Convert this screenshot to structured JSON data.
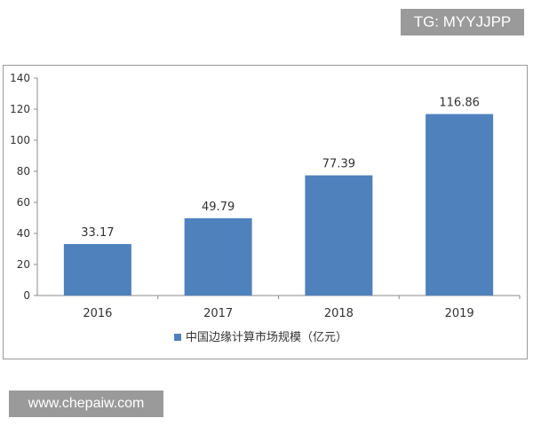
{
  "badge": {
    "text": "TG: MYYJJPP"
  },
  "watermark": {
    "text": "www.chepaiw.com"
  },
  "chart_data": {
    "type": "bar",
    "title": "",
    "xlabel": "",
    "ylabel": "",
    "categories": [
      "2016",
      "2017",
      "2018",
      "2019"
    ],
    "series": [
      {
        "name": "中国边缘计算市场规模（亿元）",
        "values": [
          33.17,
          49.79,
          77.39,
          116.86
        ],
        "color": "#4f81bd"
      }
    ],
    "data_labels": [
      "33.17",
      "49.79",
      "77.39",
      "116.86"
    ],
    "ylim": [
      0,
      140
    ],
    "y_ticks": [
      0,
      20,
      40,
      60,
      80,
      100,
      120,
      140
    ],
    "grid": false,
    "legend_position": "bottom"
  }
}
